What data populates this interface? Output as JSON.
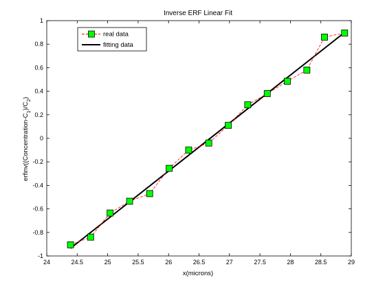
{
  "chart_data": {
    "type": "line",
    "title": "Inverse ERF Linear Fit",
    "xlabel": "x(microns)",
    "ylabel": {
      "prefix": "erfinv((Concentration-C",
      "sub1": "1",
      "middle": ")/C",
      "sub2": "2",
      "suffix": ")"
    },
    "xlim": [
      24,
      29
    ],
    "ylim": [
      -1,
      1
    ],
    "xticks": [
      24,
      24.5,
      25,
      25.5,
      26,
      26.5,
      27,
      27.5,
      28,
      28.5,
      29
    ],
    "xtick_labels": [
      "24",
      "24.5",
      "25",
      "25.5",
      "26",
      "26.5",
      "27",
      "27.5",
      "28",
      "28.5",
      "29"
    ],
    "yticks": [
      -1,
      -0.8,
      -0.6,
      -0.4,
      -0.2,
      0,
      0.2,
      0.4,
      0.6,
      0.8,
      1
    ],
    "ytick_labels": [
      "-1",
      "-0.8",
      "-0.6",
      "-0.4",
      "-0.2",
      "0",
      "0.2",
      "0.4",
      "0.6",
      "0.8",
      "1"
    ],
    "grid": false,
    "legend_position": "top-left",
    "series": [
      {
        "name": "real data",
        "color": "#ff0000",
        "marker_color": "#00ff00",
        "line_style": "dashed",
        "marker": "square",
        "x": [
          24.39,
          24.72,
          25.04,
          25.36,
          25.69,
          26.01,
          26.33,
          26.66,
          26.98,
          27.3,
          27.62,
          27.95,
          28.27,
          28.56,
          28.89
        ],
        "y": [
          -0.905,
          -0.84,
          -0.635,
          -0.535,
          -0.47,
          -0.255,
          -0.1,
          -0.04,
          0.11,
          0.285,
          0.38,
          0.485,
          0.58,
          0.86,
          0.895
        ]
      },
      {
        "name": "fitting data",
        "color": "#000000",
        "line_style": "solid",
        "x": [
          24.39,
          28.89
        ],
        "y": [
          -0.935,
          0.9
        ]
      }
    ]
  }
}
